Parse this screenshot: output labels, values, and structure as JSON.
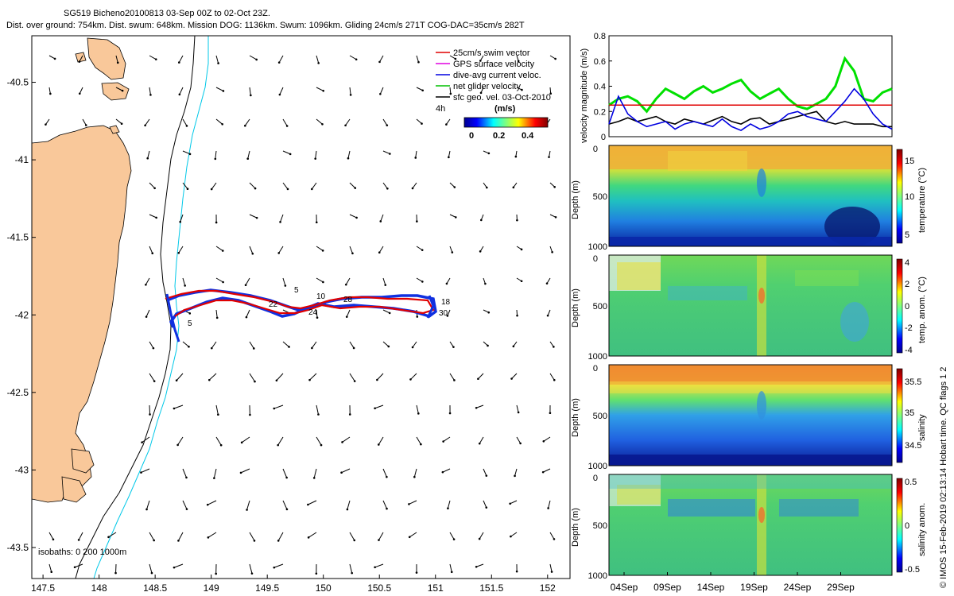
{
  "header": {
    "title": "SG519 Bicheno20100813 03-Sep 00Z to 02-Oct 23Z.",
    "subtitle": "Dist. over ground: 754km. Dist. swum: 648km. Mission DOG: 1136km. Swum: 1096km. Gliding 24cm/s 271T COG-DAC=35cm/s 282T"
  },
  "map": {
    "xticks": [
      "147.5",
      "148",
      "148.5",
      "149",
      "149.5",
      "150",
      "150.5",
      "151",
      "151.5",
      "152"
    ],
    "yticks": [
      "-40.5",
      "-41",
      "-41.5",
      "-42",
      "-42.5",
      "-43",
      "-43.5"
    ],
    "xlim": [
      147.4,
      152.2
    ],
    "ylim": [
      -43.7,
      -40.2
    ],
    "isobath_label": "isobaths: 0   200  1000m",
    "legend": [
      {
        "label": "25cm/s swim vector",
        "color": "#e00000"
      },
      {
        "label": "GPS surface velocity",
        "color": "#e000e0"
      },
      {
        "label": "dive-avg current veloc.",
        "color": "#0000e0"
      },
      {
        "label": "net glider velocity",
        "color": "#00c000"
      },
      {
        "label": "sfc geo. vel. 03-Oct-2010",
        "color": "#000000"
      }
    ],
    "colorbar_title": "(m/s)",
    "colorbar_ticks": [
      "0",
      "0.2",
      "0.4"
    ],
    "time_tag": "4h",
    "track_labels": [
      "5",
      "10",
      "18",
      "22",
      "24",
      "28",
      "30",
      "5"
    ],
    "land_color": "#f9c89a"
  },
  "chart_data": [
    {
      "type": "line",
      "name": "velocity-magnitude",
      "ylabel": "velocity magnitude (m/s)",
      "ylim": [
        0,
        0.8
      ],
      "yticks": [
        "0",
        "0.2",
        "0.4",
        "0.6",
        "0.8"
      ],
      "series": [
        {
          "name": "net glider velocity",
          "color": "#00e000",
          "values": [
            0.25,
            0.3,
            0.32,
            0.28,
            0.2,
            0.3,
            0.38,
            0.34,
            0.3,
            0.36,
            0.4,
            0.35,
            0.38,
            0.42,
            0.45,
            0.36,
            0.3,
            0.34,
            0.38,
            0.3,
            0.24,
            0.22,
            0.26,
            0.3,
            0.4,
            0.62,
            0.52,
            0.3,
            0.28,
            0.35,
            0.38
          ]
        },
        {
          "name": "dive-avg current",
          "color": "#0000e0",
          "values": [
            0.1,
            0.32,
            0.18,
            0.12,
            0.08,
            0.1,
            0.12,
            0.06,
            0.1,
            0.12,
            0.1,
            0.08,
            0.14,
            0.08,
            0.05,
            0.1,
            0.06,
            0.08,
            0.12,
            0.18,
            0.2,
            0.16,
            0.14,
            0.12,
            0.2,
            0.28,
            0.38,
            0.3,
            0.18,
            0.1,
            0.06
          ]
        },
        {
          "name": "sfc geo vel",
          "color": "#000000",
          "values": [
            0.1,
            0.12,
            0.15,
            0.12,
            0.14,
            0.16,
            0.12,
            0.1,
            0.14,
            0.12,
            0.1,
            0.13,
            0.16,
            0.12,
            0.1,
            0.14,
            0.15,
            0.1,
            0.12,
            0.14,
            0.16,
            0.18,
            0.2,
            0.12,
            0.1,
            0.12,
            0.1,
            0.1,
            0.1,
            0.08,
            0.08
          ]
        },
        {
          "name": "swim speed",
          "color": "#e00000",
          "values": [
            0.25,
            0.25,
            0.25,
            0.25,
            0.25,
            0.25,
            0.25,
            0.25,
            0.25,
            0.25,
            0.25,
            0.25,
            0.25,
            0.25,
            0.25,
            0.25,
            0.25,
            0.25,
            0.25,
            0.25,
            0.25,
            0.25,
            0.25,
            0.25,
            0.25,
            0.25,
            0.25,
            0.25,
            0.25,
            0.25,
            0.25
          ]
        }
      ]
    },
    {
      "type": "heatmap",
      "name": "temperature",
      "ylabel": "Depth (m)",
      "clabel": "temperature (°C)",
      "yticks": [
        "0",
        "500",
        "1000"
      ],
      "cticks": [
        "15",
        "10",
        "5"
      ]
    },
    {
      "type": "heatmap",
      "name": "temperature-anomaly",
      "ylabel": "Depth (m)",
      "clabel": "temp. anom. (°C)",
      "yticks": [
        "0",
        "500",
        "1000"
      ],
      "cticks": [
        "4",
        "2",
        "0",
        "-2",
        "-4"
      ]
    },
    {
      "type": "heatmap",
      "name": "salinity",
      "ylabel": "Depth (m)",
      "clabel": "salinity",
      "yticks": [
        "0",
        "500",
        "1000"
      ],
      "cticks": [
        "35.5",
        "35",
        "34.5"
      ]
    },
    {
      "type": "heatmap",
      "name": "salinity-anomaly",
      "ylabel": "Depth (m)",
      "clabel": "salinity anom.",
      "yticks": [
        "0",
        "500",
        "1000"
      ],
      "cticks": [
        "0.5",
        "0",
        "-0.5"
      ],
      "xticks": [
        "04Sep",
        "09Sep",
        "14Sep",
        "19Sep",
        "24Sep",
        "29Sep"
      ]
    }
  ],
  "footer_note": "© IMOS 15-Feb-2019 02:13:14 Hobart time. QC flags 1  2"
}
